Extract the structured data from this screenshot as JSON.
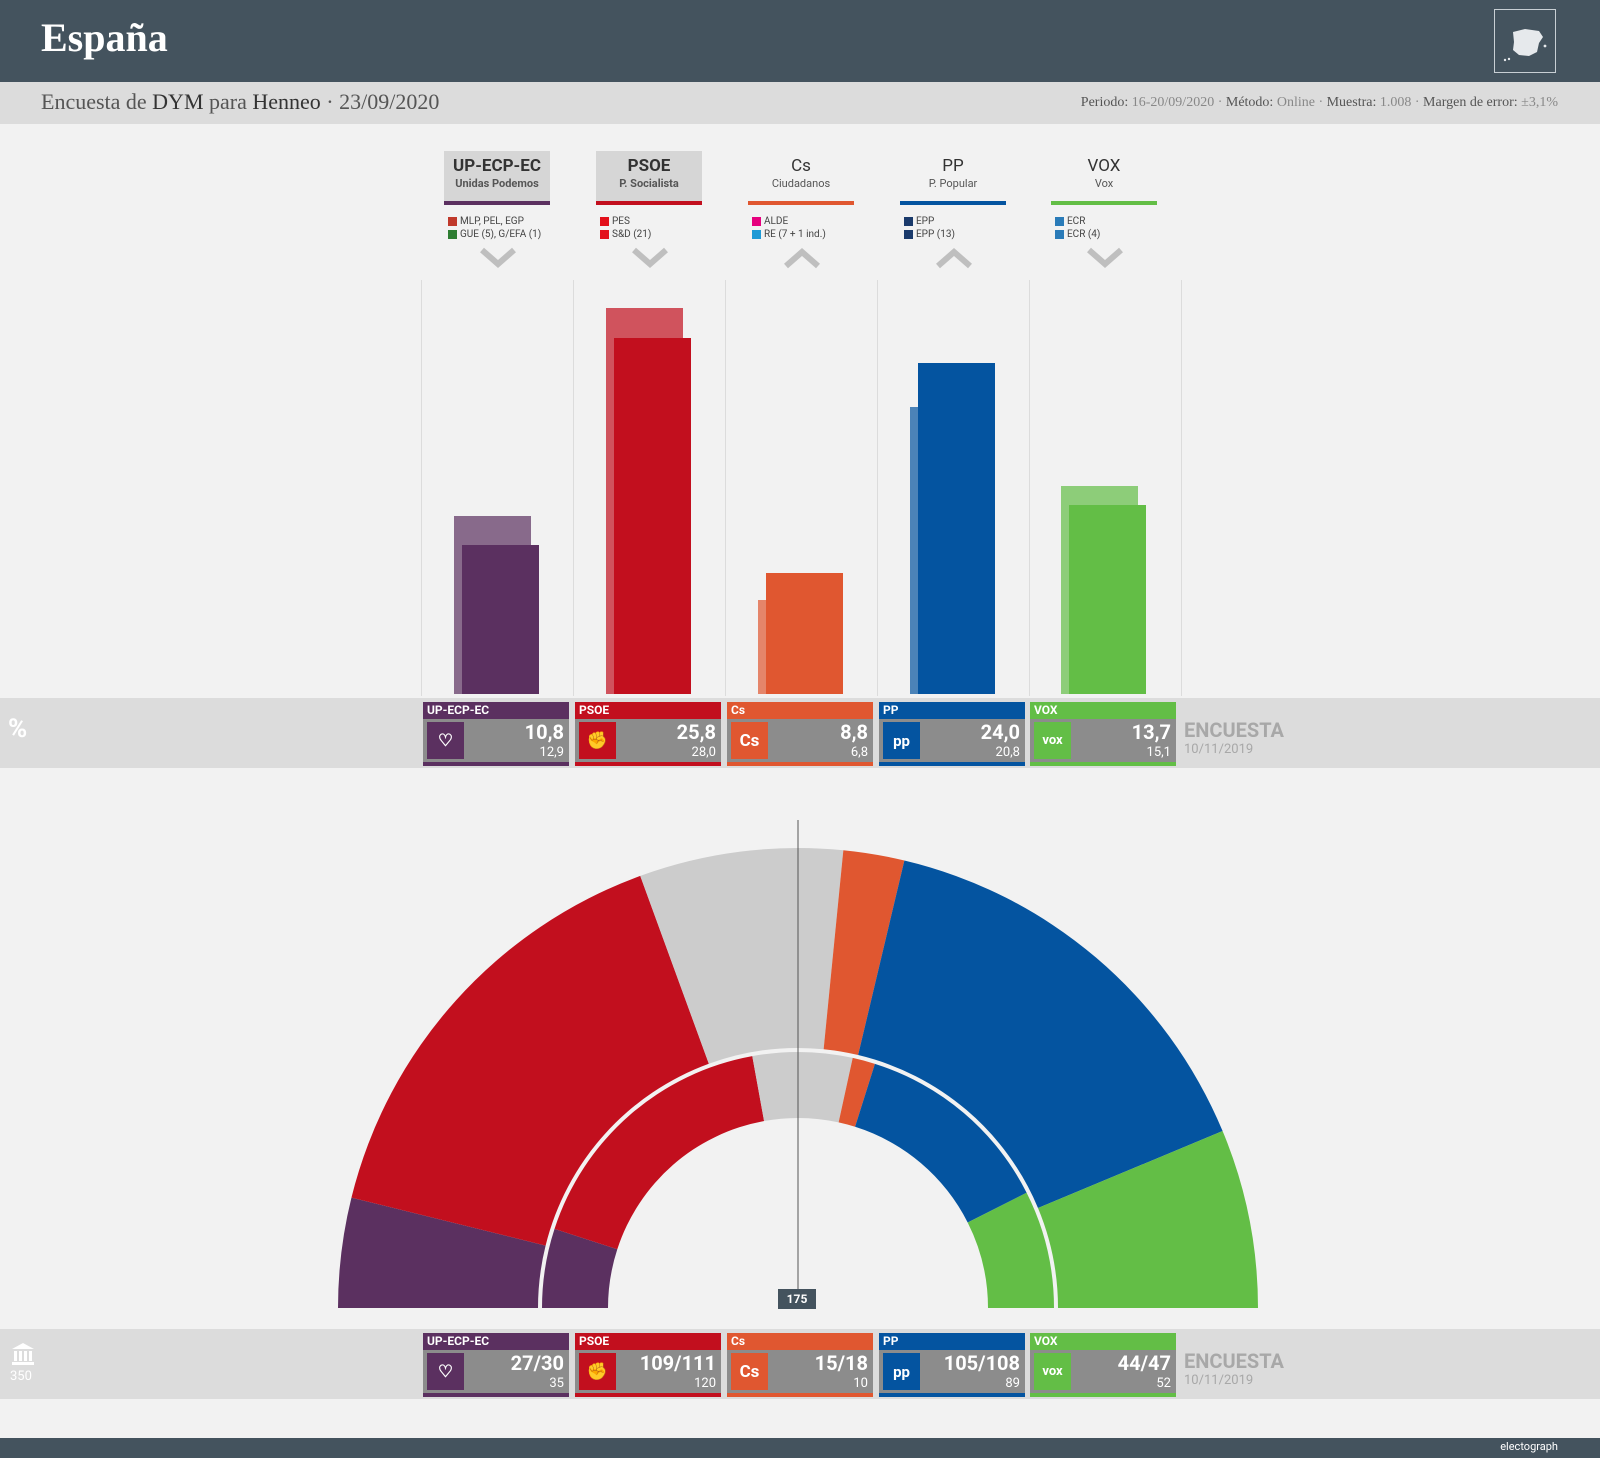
{
  "header": {
    "title": "España",
    "subtitle_prefix": "Encuesta de",
    "pollster": "DYM",
    "subtitle_mid": "para",
    "client": "Henneo",
    "subtitle_sep": "·",
    "date": "23/09/2020",
    "periodo_label": "Periodo:",
    "periodo": "16-20/09/2020",
    "metodo_label": "Método:",
    "metodo": "Online",
    "muestra_label": "Muestra:",
    "muestra": "1.008",
    "margen_label": "Margen de error:",
    "margen": "±3,1%",
    "dot": "·"
  },
  "colors": {
    "UP": "#5b3060",
    "PSOE": "#c20f1e",
    "Cs": "#e05730",
    "PP": "#0454a0",
    "VOX": "#63be46",
    "gray": "#cccccc"
  },
  "parties": [
    {
      "key": "UP",
      "name": "UP-ECP-EC",
      "full": "Unidas Podemos",
      "bold": true,
      "shaded": true,
      "trend": "down",
      "eu": [
        {
          "sq": "#c0392b",
          "sq2": "#2e7d32",
          "text": "MLP, PEL, EGP"
        },
        {
          "sq": "#2e7d32",
          "sq2": "#c0392b",
          "text": "GUE (5), G/EFA (1)"
        }
      ],
      "logo": "♡"
    },
    {
      "key": "PSOE",
      "name": "PSOE",
      "full": "P. Socialista",
      "bold": true,
      "shaded": true,
      "trend": "down",
      "eu": [
        {
          "sq": "#e3101b",
          "text": "PES"
        },
        {
          "sq": "#e3101b",
          "text": "S&D (21)"
        }
      ],
      "logo": "✊"
    },
    {
      "key": "Cs",
      "name": "Cs",
      "full": "Ciudadanos",
      "bold": false,
      "shaded": false,
      "trend": "up",
      "eu": [
        {
          "sq": "#e6007e",
          "text": "ALDE"
        },
        {
          "sq": "#1e9ad6",
          "text": "RE (7 + 1 ind.)"
        }
      ],
      "logo": "Cs"
    },
    {
      "key": "PP",
      "name": "PP",
      "full": "P. Popular",
      "bold": false,
      "shaded": false,
      "trend": "up",
      "eu": [
        {
          "sq": "#1a3a6b",
          "text": "EPP"
        },
        {
          "sq": "#1a3a6b",
          "text": "EPP (13)"
        }
      ],
      "logo": "pp"
    },
    {
      "key": "VOX",
      "name": "VOX",
      "full": "Vox",
      "bold": false,
      "shaded": false,
      "trend": "down",
      "eu": [
        {
          "sq": "#2a7bb8",
          "text": "ECR"
        },
        {
          "sq": "#2a7bb8",
          "text": "ECR (4)"
        }
      ],
      "logo": "vox"
    }
  ],
  "rows": {
    "pct_label": "%",
    "seats_total": "350",
    "encuesta_label": "ENCUESTA",
    "encuesta_date": "10/11/2019",
    "majority": "175"
  },
  "chart_data": [
    {
      "type": "bar",
      "categories": [
        "UP-ECP-EC",
        "PSOE",
        "Cs",
        "PP",
        "VOX"
      ],
      "series": [
        {
          "name": "Encuesta",
          "values": [
            10.8,
            25.8,
            8.8,
            24.0,
            13.7
          ]
        },
        {
          "name": "10/11/2019",
          "values": [
            12.9,
            28.0,
            6.8,
            20.8,
            15.1
          ]
        }
      ],
      "value_labels": [
        "10,8",
        "25,8",
        "8,8",
        "24,0",
        "13,7"
      ],
      "prev_labels": [
        "12,9",
        "28,0",
        "6,8",
        "20,8",
        "15,1"
      ],
      "ylim": [
        0,
        28
      ]
    },
    {
      "type": "hemicycle",
      "categories": [
        "UP-ECP-EC",
        "PSOE",
        "Cs",
        "PP",
        "VOX"
      ],
      "seats_min": [
        27,
        109,
        15,
        105,
        44
      ],
      "seats_max": [
        30,
        111,
        18,
        108,
        47
      ],
      "seats_labels": [
        "27/30",
        "109/111",
        "15/18",
        "105/108",
        "44/47"
      ],
      "previous": [
        35,
        120,
        10,
        89,
        52
      ],
      "total": 350,
      "majority": 175
    }
  ],
  "footer": {
    "brand": "electograph"
  }
}
